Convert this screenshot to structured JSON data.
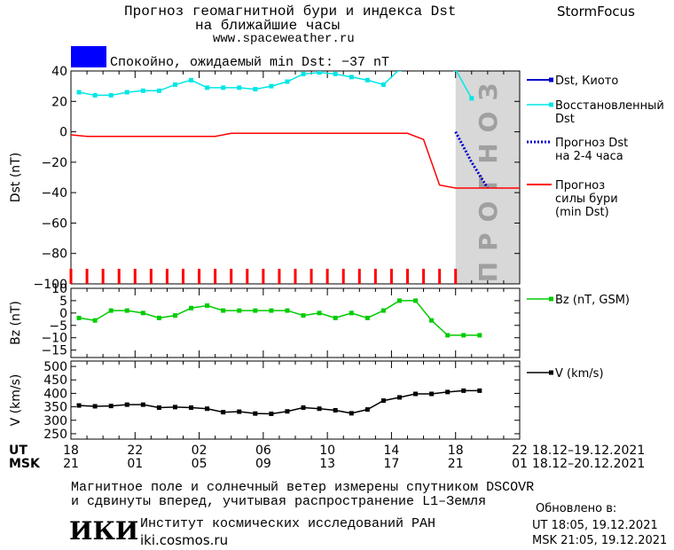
{
  "header": {
    "title_line1": "Прогноз геомагнитной бури и индекса Dst",
    "title_line2": "на ближайшие часы",
    "url": "www.spaceweather.ru",
    "brand": "StormFocus",
    "status_text": "Спокойно, ожидаемый min Dst: −37 nT",
    "status_color": "#0000ff"
  },
  "forecast_zone_label": "ПРОГНОЗ",
  "time_axis": {
    "ut_label": "UT",
    "msk_label": "MSK",
    "ut_ticks": [
      "18",
      "22",
      "02",
      "06",
      "10",
      "14",
      "18",
      "22"
    ],
    "msk_ticks": [
      "21",
      "01",
      "05",
      "09",
      "13",
      "17",
      "21",
      "01"
    ],
    "ut_range": "18.12–19.12.2021",
    "msk_range": "18.12–20.12.2021"
  },
  "footer": {
    "note_line1": "Магнитное поле и солнечный ветер измерены спутником DSCOVR",
    "note_line2": "и сдвинуты вперед, учитывая распространение L1–Земля",
    "logo": "ИКИ",
    "institute": "Институт космических исследований РАН",
    "institute_url": "iki.cosmos.ru",
    "updated_label": "Обновлено в:",
    "updated_ut": "UT   18:05, 19.12.2021",
    "updated_msk": "MSK 21:05, 19.12.2021"
  },
  "chart_data": [
    {
      "type": "line",
      "ylabel": "Dst (nT)",
      "ylim": [
        -100,
        40
      ],
      "yticks": [
        40,
        20,
        0,
        -20,
        -40,
        -60,
        -80,
        -100
      ],
      "x_hours": [
        0,
        1,
        2,
        3,
        4,
        5,
        6,
        7,
        8,
        9,
        10,
        11,
        12,
        13,
        14,
        15,
        16,
        17,
        18,
        19,
        20,
        21,
        22,
        23,
        24,
        25
      ],
      "forecast_region_hours": [
        24,
        28
      ],
      "series": [
        {
          "name": "Dst, Киото",
          "color": "#0000cc",
          "values": [
            null,
            null,
            null,
            null,
            null,
            null,
            null,
            null,
            null,
            null,
            null,
            null,
            null,
            null,
            null,
            null,
            null,
            null,
            null,
            null,
            null,
            null,
            null,
            null,
            null,
            null
          ]
        },
        {
          "name": "Восстановленный Dst",
          "color": "#00e6e6",
          "x": [
            0.5,
            1.5,
            2.5,
            3.5,
            4.5,
            5.5,
            6.5,
            7.5,
            8.5,
            9.5,
            10.5,
            11.5,
            12.5,
            13.5,
            14.5,
            15.5,
            16.5,
            17.5,
            18.5,
            19.5,
            20.5,
            21.5,
            22.5,
            23.0,
            24,
            25
          ],
          "values": [
            26,
            24,
            24,
            26,
            27,
            27,
            31,
            34,
            29,
            29,
            29,
            28,
            30,
            33,
            38,
            39,
            38,
            36,
            34,
            31,
            41,
            48,
            48,
            45,
            41,
            22
          ]
        },
        {
          "name": "Прогноз Dst на 2-4 часа",
          "color": "#0000cc",
          "x": [
            24,
            25,
            26
          ],
          "values": [
            0,
            -20,
            -37
          ]
        },
        {
          "name": "Прогноз силы бури (min Dst)",
          "color": "#ff0000",
          "x": [
            0,
            1,
            9,
            10,
            21,
            22,
            23,
            24,
            28
          ],
          "values": [
            -2,
            -3,
            -3,
            -1,
            -1,
            -5,
            -35,
            -37,
            -37
          ]
        }
      ]
    },
    {
      "type": "line",
      "ylabel": "Bz (nT)",
      "ylim": [
        -18,
        10
      ],
      "yticks": [
        10,
        5,
        0,
        -5,
        -10,
        -15
      ],
      "series": [
        {
          "name": "Bz (nT, GSM)",
          "color": "#00cc00",
          "x": [
            0.5,
            1.5,
            2.5,
            3.5,
            4.5,
            5.5,
            6.5,
            7.5,
            8.5,
            9.5,
            10.5,
            11.5,
            12.5,
            13.5,
            14.5,
            15.5,
            16.5,
            17.5,
            18.5,
            19.5,
            20.5,
            21.5,
            22.5,
            23.5,
            24.5,
            25.5
          ],
          "values": [
            -2,
            -3,
            1,
            1,
            0,
            -2,
            -1,
            2,
            3,
            1,
            1,
            1,
            1,
            1,
            -1,
            0,
            -2,
            0,
            -2,
            1,
            5,
            5,
            -3,
            -9,
            -9,
            -9
          ]
        }
      ]
    },
    {
      "type": "line",
      "ylabel": "V (km/s)",
      "ylim": [
        230,
        520
      ],
      "yticks": [
        500,
        450,
        400,
        350,
        300,
        250
      ],
      "series": [
        {
          "name": "V (km/s)",
          "color": "#000000",
          "x": [
            0.5,
            1.5,
            2.5,
            3.5,
            4.5,
            5.5,
            6.5,
            7.5,
            8.5,
            9.5,
            10.5,
            11.5,
            12.5,
            13.5,
            14.5,
            15.5,
            16.5,
            17.5,
            18.5,
            19.5,
            20.5,
            21.5,
            22.5,
            23.5,
            24.5,
            25.5
          ],
          "values": [
            355,
            352,
            353,
            358,
            358,
            347,
            349,
            347,
            343,
            330,
            332,
            325,
            324,
            333,
            347,
            343,
            337,
            326,
            340,
            373,
            385,
            398,
            398,
            405,
            410,
            410
          ]
        }
      ]
    }
  ]
}
